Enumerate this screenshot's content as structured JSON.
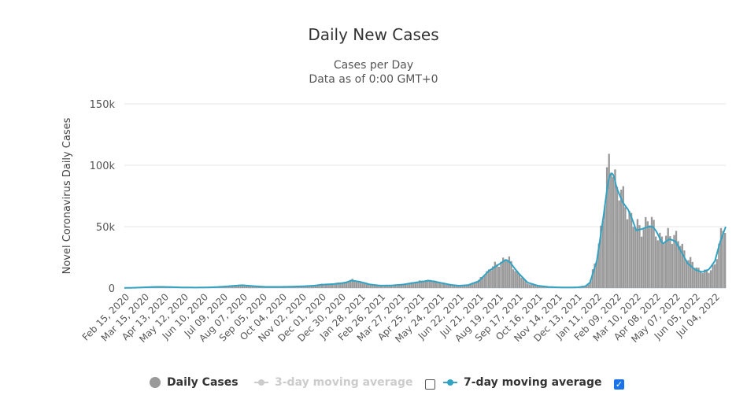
{
  "chart_data": {
    "type": "bar",
    "title": "Daily New Cases",
    "subtitle_lines": [
      "Cases per Day",
      "Data as of 0:00 GMT+0"
    ],
    "ylabel": "Novel Coronavirus Daily Cases",
    "ylim": [
      0,
      150000
    ],
    "yticks": [
      0,
      50000,
      100000,
      150000
    ],
    "ytick_labels": [
      "0",
      "50k",
      "100k",
      "150k"
    ],
    "grid": true,
    "x_start": "2020-02-15",
    "x_end": "2022-07-20",
    "xtick_labels": [
      "Feb 15, 2020",
      "Mar 15, 2020",
      "Apr 13, 2020",
      "May 12, 2020",
      "Jun 10, 2020",
      "Jul 09, 2020",
      "Aug 07, 2020",
      "Sep 05, 2020",
      "Oct 04, 2020",
      "Nov 02, 2020",
      "Dec 01, 2020",
      "Dec 30, 2020",
      "Jan 28, 2021",
      "Feb 26, 2021",
      "Mar 27, 2021",
      "Apr 25, 2021",
      "May 24, 2021",
      "Jun 22, 2021",
      "Jul 21, 2021",
      "Aug 19, 2021",
      "Sep 17, 2021",
      "Oct 16, 2021",
      "Nov 14, 2021",
      "Dec 13, 2021",
      "Jan 11, 2022",
      "Feb 09, 2022",
      "Mar 10, 2022",
      "Apr 08, 2022",
      "May 07, 2022",
      "Jun 05, 2022",
      "Jul 04, 2022"
    ],
    "series": [
      {
        "name": "Daily Cases",
        "kind": "bar",
        "color": "#999999",
        "points": [
          [
            "2020-02-15",
            100
          ],
          [
            "2020-03-01",
            300
          ],
          [
            "2020-03-20",
            800
          ],
          [
            "2020-04-05",
            1200
          ],
          [
            "2020-04-20",
            900
          ],
          [
            "2020-05-10",
            500
          ],
          [
            "2020-06-01",
            400
          ],
          [
            "2020-06-20",
            600
          ],
          [
            "2020-07-09",
            1200
          ],
          [
            "2020-07-25",
            2000
          ],
          [
            "2020-08-07",
            2600
          ],
          [
            "2020-08-25",
            1600
          ],
          [
            "2020-09-10",
            900
          ],
          [
            "2020-10-04",
            1000
          ],
          [
            "2020-10-20",
            1200
          ],
          [
            "2020-11-02",
            1500
          ],
          [
            "2020-11-20",
            2000
          ],
          [
            "2020-12-01",
            3000
          ],
          [
            "2020-12-20",
            3500
          ],
          [
            "2021-01-05",
            4800
          ],
          [
            "2021-01-15",
            6500
          ],
          [
            "2021-01-28",
            5000
          ],
          [
            "2021-02-10",
            3000
          ],
          [
            "2021-02-26",
            2000
          ],
          [
            "2021-03-15",
            2200
          ],
          [
            "2021-04-01",
            3000
          ],
          [
            "2021-04-25",
            5500
          ],
          [
            "2021-05-10",
            6500
          ],
          [
            "2021-05-24",
            4500
          ],
          [
            "2021-06-10",
            2500
          ],
          [
            "2021-06-22",
            1800
          ],
          [
            "2021-07-05",
            2500
          ],
          [
            "2021-07-21",
            6000
          ],
          [
            "2021-08-05",
            15000
          ],
          [
            "2021-08-19",
            20000
          ],
          [
            "2021-08-30",
            25000
          ],
          [
            "2021-09-05",
            22000
          ],
          [
            "2021-09-17",
            12000
          ],
          [
            "2021-10-01",
            4000
          ],
          [
            "2021-10-16",
            1800
          ],
          [
            "2021-11-01",
            800
          ],
          [
            "2021-11-14",
            500
          ],
          [
            "2021-12-01",
            400
          ],
          [
            "2021-12-13",
            500
          ],
          [
            "2021-12-25",
            1500
          ],
          [
            "2022-01-01",
            5000
          ],
          [
            "2022-01-11",
            25000
          ],
          [
            "2022-01-20",
            60000
          ],
          [
            "2022-01-28",
            95000
          ],
          [
            "2022-02-01",
            104000
          ],
          [
            "2022-02-05",
            98000
          ],
          [
            "2022-02-09",
            85000
          ],
          [
            "2022-02-18",
            72000
          ],
          [
            "2022-02-26",
            65000
          ],
          [
            "2022-03-05",
            55000
          ],
          [
            "2022-03-10",
            48000
          ],
          [
            "2022-03-18",
            50000
          ],
          [
            "2022-03-28",
            55000
          ],
          [
            "2022-04-03",
            52000
          ],
          [
            "2022-04-08",
            48000
          ],
          [
            "2022-04-18",
            38000
          ],
          [
            "2022-04-28",
            45000
          ],
          [
            "2022-05-07",
            42000
          ],
          [
            "2022-05-15",
            35000
          ],
          [
            "2022-05-25",
            25000
          ],
          [
            "2022-06-05",
            17000
          ],
          [
            "2022-06-15",
            14000
          ],
          [
            "2022-06-25",
            13000
          ],
          [
            "2022-07-04",
            20000
          ],
          [
            "2022-07-12",
            40000
          ],
          [
            "2022-07-20",
            52000
          ]
        ]
      },
      {
        "name": "3-day moving average",
        "kind": "line",
        "visible": false,
        "color": "#cccccc"
      },
      {
        "name": "7-day moving average",
        "kind": "line",
        "visible": true,
        "color": "#33a3c4",
        "points": [
          [
            "2020-02-15",
            100
          ],
          [
            "2020-03-01",
            250
          ],
          [
            "2020-03-20",
            700
          ],
          [
            "2020-04-05",
            1000
          ],
          [
            "2020-04-20",
            850
          ],
          [
            "2020-05-10",
            500
          ],
          [
            "2020-06-01",
            420
          ],
          [
            "2020-06-20",
            550
          ],
          [
            "2020-07-09",
            1100
          ],
          [
            "2020-07-25",
            1800
          ],
          [
            "2020-08-07",
            2300
          ],
          [
            "2020-08-25",
            1500
          ],
          [
            "2020-09-10",
            950
          ],
          [
            "2020-10-04",
            1000
          ],
          [
            "2020-10-20",
            1150
          ],
          [
            "2020-11-02",
            1400
          ],
          [
            "2020-11-20",
            1900
          ],
          [
            "2020-12-01",
            2700
          ],
          [
            "2020-12-20",
            3300
          ],
          [
            "2021-01-05",
            4300
          ],
          [
            "2021-01-15",
            6200
          ],
          [
            "2021-01-28",
            5000
          ],
          [
            "2021-02-10",
            3000
          ],
          [
            "2021-02-26",
            2000
          ],
          [
            "2021-03-15",
            2100
          ],
          [
            "2021-04-01",
            2900
          ],
          [
            "2021-04-25",
            5000
          ],
          [
            "2021-05-10",
            6000
          ],
          [
            "2021-05-24",
            4500
          ],
          [
            "2021-06-10",
            2600
          ],
          [
            "2021-06-22",
            1900
          ],
          [
            "2021-07-05",
            2400
          ],
          [
            "2021-07-21",
            5500
          ],
          [
            "2021-08-05",
            14000
          ],
          [
            "2021-08-19",
            19000
          ],
          [
            "2021-08-30",
            23000
          ],
          [
            "2021-09-05",
            21000
          ],
          [
            "2021-09-17",
            12500
          ],
          [
            "2021-10-01",
            4500
          ],
          [
            "2021-10-16",
            1900
          ],
          [
            "2021-11-01",
            900
          ],
          [
            "2021-11-14",
            550
          ],
          [
            "2021-12-01",
            450
          ],
          [
            "2021-12-13",
            550
          ],
          [
            "2021-12-25",
            1400
          ],
          [
            "2022-01-01",
            4500
          ],
          [
            "2022-01-11",
            22000
          ],
          [
            "2022-01-20",
            55000
          ],
          [
            "2022-01-28",
            88000
          ],
          [
            "2022-02-01",
            94000
          ],
          [
            "2022-02-05",
            92000
          ],
          [
            "2022-02-09",
            82000
          ],
          [
            "2022-02-18",
            70000
          ],
          [
            "2022-02-26",
            64000
          ],
          [
            "2022-03-05",
            55000
          ],
          [
            "2022-03-10",
            47000
          ],
          [
            "2022-03-18",
            48000
          ],
          [
            "2022-03-28",
            50000
          ],
          [
            "2022-04-03",
            50000
          ],
          [
            "2022-04-08",
            47000
          ],
          [
            "2022-04-18",
            36000
          ],
          [
            "2022-04-28",
            40000
          ],
          [
            "2022-05-07",
            38000
          ],
          [
            "2022-05-15",
            30000
          ],
          [
            "2022-05-25",
            20000
          ],
          [
            "2022-06-05",
            15000
          ],
          [
            "2022-06-15",
            13000
          ],
          [
            "2022-06-25",
            15000
          ],
          [
            "2022-07-04",
            22000
          ],
          [
            "2022-07-12",
            38000
          ],
          [
            "2022-07-20",
            50000
          ]
        ]
      }
    ],
    "legend": {
      "placement": "bottom-center",
      "items": [
        {
          "label": "Daily Cases",
          "color": "#999999"
        },
        {
          "label": "3-day moving average",
          "color": "#cccccc",
          "checked": false
        },
        {
          "label": "7-day moving average",
          "color": "#33a3c4",
          "checked": true
        }
      ]
    }
  }
}
